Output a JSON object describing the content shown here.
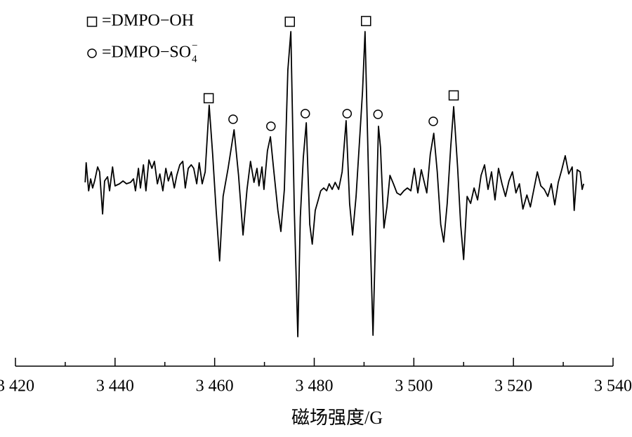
{
  "chart_data": {
    "type": "line",
    "x_label": "磁场强度/G",
    "xlim": [
      3420,
      3540
    ],
    "xticks": [
      {
        "value": 3420,
        "label": "3 420"
      },
      {
        "value": 3440,
        "label": "3 440"
      },
      {
        "value": 3460,
        "label": "3 460"
      },
      {
        "value": 3480,
        "label": "3 480"
      },
      {
        "value": 3500,
        "label": "3 500"
      },
      {
        "value": 3520,
        "label": "3 520"
      },
      {
        "value": 3540,
        "label": "3 540"
      }
    ],
    "xminorticks": [
      3430,
      3450,
      3470,
      3490,
      3510,
      3530
    ],
    "ylim": [
      -250,
      250
    ],
    "color": "#000000",
    "x": [
      3434.0,
      3434.2,
      3434.7,
      3435.1,
      3435.5,
      3435.9,
      3436.5,
      3436.9,
      3437.5,
      3437.9,
      3438.5,
      3438.9,
      3439.5,
      3440.0,
      3440.9,
      3441.6,
      3442.3,
      3443.1,
      3443.7,
      3444.1,
      3444.7,
      3445.1,
      3445.7,
      3446.2,
      3446.8,
      3447.4,
      3447.9,
      3448.5,
      3449.0,
      3449.6,
      3450.2,
      3450.7,
      3451.3,
      3451.9,
      3452.4,
      3453.0,
      3453.6,
      3454.1,
      3454.7,
      3455.3,
      3455.8,
      3456.4,
      3456.9,
      3457.5,
      3458.1,
      3458.9,
      3459.6,
      3460.3,
      3461.0,
      3461.7,
      3462.7,
      3463.9,
      3464.8,
      3465.7,
      3466.5,
      3467.2,
      3467.9,
      3468.5,
      3468.9,
      3469.5,
      3469.9,
      3470.6,
      3471.2,
      3471.9,
      3472.7,
      3473.3,
      3474.0,
      3474.7,
      3475.3,
      3476.0,
      3476.7,
      3477.2,
      3477.8,
      3478.4,
      3479.1,
      3479.6,
      3480.2,
      3480.8,
      3481.3,
      3481.9,
      3482.5,
      3483.0,
      3483.6,
      3484.2,
      3484.9,
      3485.6,
      3486.4,
      3487.1,
      3487.7,
      3488.4,
      3489.1,
      3489.7,
      3490.2,
      3490.9,
      3491.8,
      3492.3,
      3492.9,
      3493.3,
      3494.0,
      3494.6,
      3495.2,
      3495.9,
      3496.6,
      3497.3,
      3498.0,
      3498.7,
      3499.4,
      3500.1,
      3500.8,
      3501.5,
      3502.1,
      3502.6,
      3503.3,
      3504.0,
      3504.7,
      3505.4,
      3506.0,
      3506.7,
      3507.4,
      3508.0,
      3508.8,
      3509.4,
      3510.0,
      3510.7,
      3511.4,
      3512.1,
      3512.8,
      3513.5,
      3514.2,
      3514.9,
      3515.6,
      3516.3,
      3517.0,
      3517.7,
      3518.4,
      3519.1,
      3519.8,
      3520.5,
      3521.2,
      3521.9,
      3522.7,
      3523.4,
      3524.1,
      3524.8,
      3525.5,
      3526.2,
      3526.9,
      3527.6,
      3528.3,
      3529.0,
      3529.7,
      3530.4,
      3531.1,
      3531.8,
      3532.2,
      3532.8,
      3533.4,
      3533.8,
      3534.1
    ],
    "values": [
      5,
      33,
      -7,
      10,
      -3,
      7,
      27,
      20,
      -40,
      7,
      13,
      -7,
      27,
      0,
      3,
      7,
      3,
      5,
      10,
      -7,
      25,
      -3,
      30,
      -7,
      37,
      25,
      35,
      3,
      17,
      -7,
      25,
      7,
      20,
      -3,
      15,
      30,
      35,
      -3,
      25,
      30,
      25,
      3,
      33,
      3,
      20,
      115,
      45,
      -35,
      -107,
      -15,
      25,
      80,
      15,
      -70,
      -5,
      35,
      5,
      25,
      0,
      27,
      -5,
      50,
      70,
      20,
      -35,
      -65,
      -5,
      165,
      220,
      -35,
      -215,
      -45,
      40,
      90,
      -55,
      -83,
      -35,
      -20,
      -7,
      -3,
      -7,
      3,
      -5,
      5,
      -5,
      20,
      93,
      -25,
      -70,
      -15,
      65,
      135,
      220,
      15,
      -213,
      -75,
      85,
      55,
      -60,
      -30,
      15,
      3,
      -10,
      -13,
      -7,
      -3,
      -7,
      25,
      -10,
      23,
      5,
      -10,
      45,
      75,
      20,
      -55,
      -80,
      -25,
      55,
      113,
      25,
      -55,
      -105,
      -15,
      -25,
      -3,
      -20,
      15,
      30,
      -5,
      20,
      -20,
      25,
      3,
      -15,
      7,
      20,
      -10,
      3,
      -33,
      -13,
      -30,
      -5,
      20,
      0,
      -5,
      -15,
      3,
      -27,
      5,
      23,
      43,
      17,
      27,
      -35,
      23,
      20,
      -5,
      3
    ],
    "markers": [
      {
        "symbol": "square",
        "x": 3458.8,
        "y": 125
      },
      {
        "symbol": "square",
        "x": 3475.1,
        "y": 234
      },
      {
        "symbol": "square",
        "x": 3490.4,
        "y": 235
      },
      {
        "symbol": "square",
        "x": 3508.0,
        "y": 129
      },
      {
        "symbol": "circle",
        "x": 3463.7,
        "y": 95
      },
      {
        "symbol": "circle",
        "x": 3471.3,
        "y": 85
      },
      {
        "symbol": "circle",
        "x": 3478.2,
        "y": 103
      },
      {
        "symbol": "circle",
        "x": 3486.6,
        "y": 103
      },
      {
        "symbol": "circle",
        "x": 3492.8,
        "y": 102
      },
      {
        "symbol": "circle",
        "x": 3503.9,
        "y": 92
      }
    ],
    "legend": [
      {
        "symbol": "square",
        "label": "=DMPO−OH"
      },
      {
        "symbol": "circle",
        "label": "=DMPO−SO",
        "sub": "4",
        "sup": "−"
      }
    ]
  }
}
